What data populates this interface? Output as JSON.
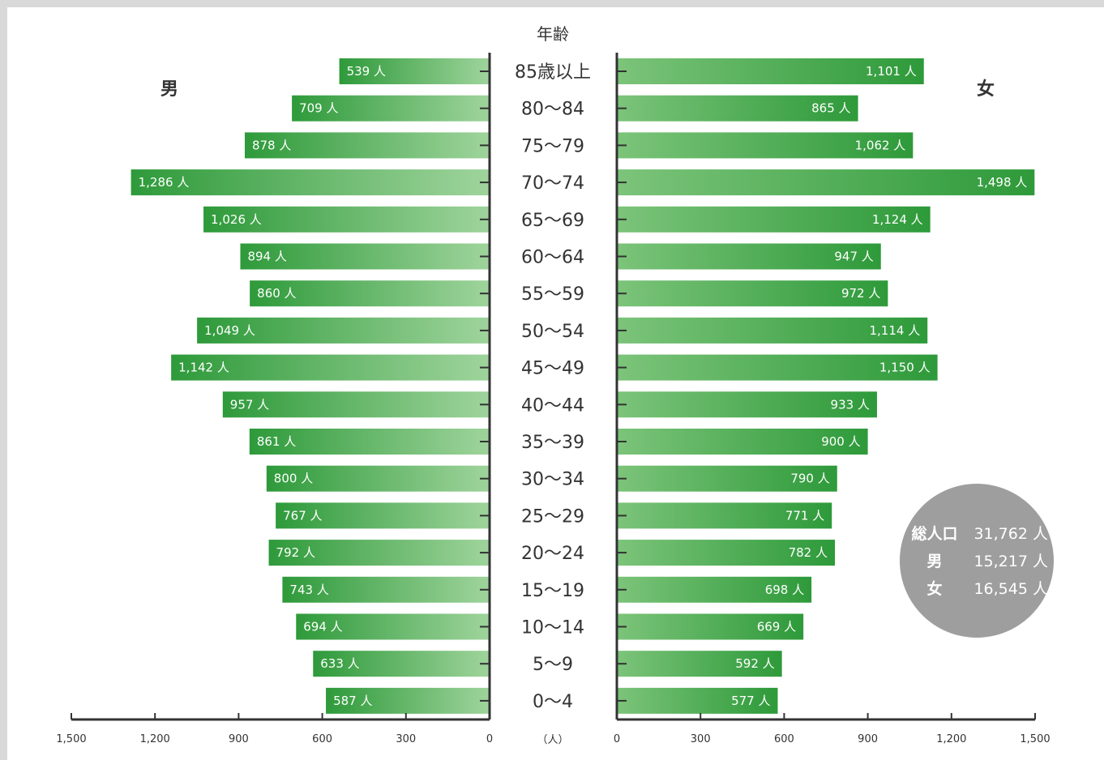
{
  "chart_data": {
    "type": "bar",
    "subtype": "population-pyramid",
    "header": "年齢",
    "unit_label": "（人）",
    "left_label": "男",
    "right_label": "女",
    "value_suffix": " 人",
    "categories": [
      "85歳以上",
      "80〜84",
      "75〜79",
      "70〜74",
      "65〜69",
      "60〜64",
      "55〜59",
      "50〜54",
      "45〜49",
      "40〜44",
      "35〜39",
      "30〜34",
      "25〜29",
      "20〜24",
      "15〜19",
      "10〜14",
      "5〜9",
      "0〜4"
    ],
    "series": [
      {
        "name": "男",
        "values": [
          539,
          709,
          878,
          1286,
          1026,
          894,
          860,
          1049,
          1142,
          957,
          861,
          800,
          767,
          792,
          743,
          694,
          633,
          587
        ]
      },
      {
        "name": "女",
        "values": [
          1101,
          865,
          1062,
          1498,
          1124,
          947,
          972,
          1114,
          1150,
          933,
          900,
          790,
          771,
          782,
          698,
          669,
          592,
          577
        ]
      }
    ],
    "xlim": [
      0,
      1500
    ],
    "x_ticks": [
      0,
      300,
      600,
      900,
      1200,
      1500
    ],
    "colors": {
      "male_dark": "#2e9a3a",
      "male_light": "#9fd49c",
      "female_dark": "#2e9a3a",
      "female_light": "#7cc47a",
      "axis": "#333333",
      "summary_bg": "#9e9e9e"
    },
    "summary": [
      {
        "label": "総人口",
        "value": "31,762 人"
      },
      {
        "label": "男",
        "value": "15,217 人"
      },
      {
        "label": "女",
        "value": "16,545 人"
      }
    ]
  }
}
